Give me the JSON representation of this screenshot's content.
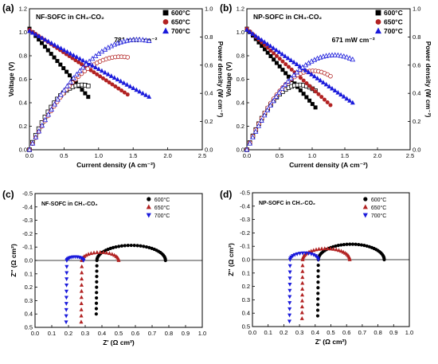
{
  "chart_data": [
    {
      "panel_label": "(a)",
      "type": "line",
      "title": "NF-SOFC in CH₄-CO₂",
      "xlabel": "Current density (A cm⁻²)",
      "ylabel": "Voltage (V)",
      "y2label": "Power density (W cm⁻²)",
      "xlim": [
        0,
        2.5
      ],
      "ylim": [
        0,
        1.2
      ],
      "y2lim": [
        0,
        1.0
      ],
      "xticks": [
        "0.0",
        "0.5",
        "1.0",
        "1.5",
        "2.0",
        "2.5"
      ],
      "yticks": [
        "0.0",
        "0.2",
        "0.4",
        "0.6",
        "0.8",
        "1.0",
        "1.2"
      ],
      "y2ticks": [
        "0.0",
        "0.2",
        "0.4",
        "0.6",
        "0.8",
        "1.0"
      ],
      "annotation": "781 mW cm⁻²",
      "legend_position": "top-right",
      "series": [
        {
          "name": "600°C",
          "color": "#000000",
          "marker": "square",
          "imax": 0.85,
          "v0": 1.03,
          "vend": 0.45,
          "pmax": 0.46
        },
        {
          "name": "650°C",
          "color": "#b22222",
          "marker": "circle",
          "imax": 1.42,
          "v0": 1.02,
          "vend": 0.47,
          "pmax": 0.66
        },
        {
          "name": "700°C",
          "color": "#1a1adb",
          "marker": "triangle",
          "imax": 1.73,
          "v0": 1.01,
          "vend": 0.45,
          "pmax": 0.781
        }
      ]
    },
    {
      "panel_label": "(b)",
      "type": "line",
      "title": "NP-SOFC in CH₄-CO₂",
      "xlabel": "Current density (A cm⁻²)",
      "ylabel": "Voltage (V)",
      "y2label": "Power density (W cm⁻²)",
      "xlim": [
        0,
        2.5
      ],
      "ylim": [
        0,
        1.2
      ],
      "y2lim": [
        0,
        1.0
      ],
      "xticks": [
        "0.0",
        "0.5",
        "1.0",
        "1.5",
        "2.0",
        "2.5"
      ],
      "yticks": [
        "0.0",
        "0.2",
        "0.4",
        "0.6",
        "0.8",
        "1.0",
        "1.2"
      ],
      "y2ticks": [
        "0.0",
        "0.2",
        "0.4",
        "0.6",
        "0.8",
        "1.0"
      ],
      "annotation": "671 mW cm⁻²",
      "legend_position": "top-right",
      "series": [
        {
          "name": "600°C",
          "color": "#000000",
          "marker": "square",
          "imax": 1.05,
          "v0": 1.03,
          "vend": 0.36,
          "pmax": 0.46
        },
        {
          "name": "650°C",
          "color": "#b22222",
          "marker": "circle",
          "imax": 1.28,
          "v0": 1.03,
          "vend": 0.38,
          "pmax": 0.56
        },
        {
          "name": "700°C",
          "color": "#1a1adb",
          "marker": "triangle",
          "imax": 1.62,
          "v0": 1.02,
          "vend": 0.4,
          "pmax": 0.671
        }
      ]
    },
    {
      "panel_label": "(c)",
      "type": "scatter",
      "title": "NF-SOFC in CH₄-CO₂",
      "xlabel": "Z' (Ω cm²)",
      "ylabel": "Z'' (Ω cm²)",
      "xlim": [
        0,
        1.0
      ],
      "ylim": [
        -0.5,
        0.5
      ],
      "y_inverted": true,
      "xticks": [
        "0.0",
        "0.1",
        "0.2",
        "0.3",
        "0.4",
        "0.5",
        "0.6",
        "0.7",
        "0.8",
        "0.9",
        "1.0"
      ],
      "yticks": [
        "-0.5",
        "-0.4",
        "-0.3",
        "-0.2",
        "-0.1",
        "0.0",
        "0.1",
        "0.2",
        "0.3",
        "0.4",
        "0.5"
      ],
      "legend_position": "top-right",
      "series": [
        {
          "name": "600°C",
          "color": "#000000",
          "marker": "circle",
          "r0": 0.37,
          "r1": 0.78,
          "tail": 0.4
        },
        {
          "name": "650°C",
          "color": "#b22222",
          "marker": "triangle",
          "r0": 0.28,
          "r1": 0.5,
          "tail": 0.46
        },
        {
          "name": "700°C",
          "color": "#1a1adb",
          "marker": "triangle-down",
          "r0": 0.19,
          "r1": 0.29,
          "tail": 0.46
        }
      ]
    },
    {
      "panel_label": "(d)",
      "type": "scatter",
      "title": "NP-SOFC in CH₄-CO₂",
      "xlabel": "Z' (Ω cm²)",
      "ylabel": "Z'' (Ω cm²)",
      "xlim": [
        0,
        1.0
      ],
      "ylim": [
        -0.5,
        0.5
      ],
      "y_inverted": true,
      "xticks": [
        "0.0",
        "0.1",
        "0.2",
        "0.3",
        "0.4",
        "0.5",
        "0.6",
        "0.7",
        "0.8",
        "0.9",
        "1.0"
      ],
      "yticks": [
        "-0.5",
        "-0.4",
        "-0.3",
        "-0.2",
        "-0.1",
        "0.0",
        "0.1",
        "0.2",
        "0.3",
        "0.4",
        "0.5"
      ],
      "legend_position": "top-right",
      "series": [
        {
          "name": "600°C",
          "color": "#000000",
          "marker": "circle",
          "r0": 0.42,
          "r1": 0.84,
          "tail": 0.42
        },
        {
          "name": "650°C",
          "color": "#b22222",
          "marker": "triangle",
          "r0": 0.32,
          "r1": 0.62,
          "tail": 0.44
        },
        {
          "name": "700°C",
          "color": "#1a1adb",
          "marker": "triangle-down",
          "r0": 0.24,
          "r1": 0.42,
          "tail": 0.46
        }
      ]
    }
  ]
}
